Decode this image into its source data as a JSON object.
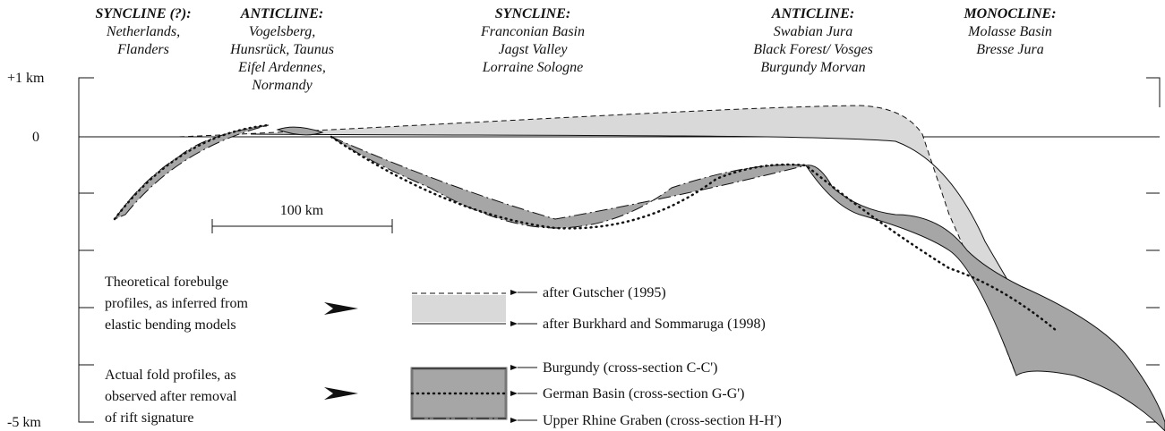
{
  "headers": [
    {
      "title": "SYNCLINE (?):",
      "lines": [
        "Netherlands,",
        "Flanders"
      ]
    },
    {
      "title": "ANTICLINE:",
      "lines": [
        "Vogelsberg,",
        "Hunsrück, Taunus",
        "Eifel Ardennes,",
        "Normandy"
      ]
    },
    {
      "title": "SYNCLINE:",
      "lines": [
        "Franconian Basin",
        "Jagst Valley",
        "Lorraine Sologne"
      ]
    },
    {
      "title": "ANTICLINE:",
      "lines": [
        "Swabian Jura",
        "Black Forest/ Vosges",
        "Burgundy Morvan"
      ]
    },
    {
      "title": "MONOCLINE:",
      "lines": [
        "Molasse Basin",
        "Bresse Jura"
      ]
    }
  ],
  "axis_labels": {
    "top": "+1 km",
    "zero": "0",
    "bottom": "-5 km"
  },
  "scale_bar": "100 km",
  "legend": {
    "theoretical": {
      "description": [
        "Theoretical forebulge",
        "profiles, as inferred from",
        "elastic bending models"
      ],
      "items": [
        "after Gutscher (1995)",
        "after Burkhard and Sommaruga (1998)"
      ]
    },
    "actual": {
      "description": [
        "Actual fold profiles, as",
        "observed after removal",
        "of rift signature"
      ],
      "items": [
        "Burgundy (cross-section C-C')",
        "German Basin (cross-section G-G')",
        "Upper Rhine Graben (cross-section H-H')"
      ]
    }
  }
}
